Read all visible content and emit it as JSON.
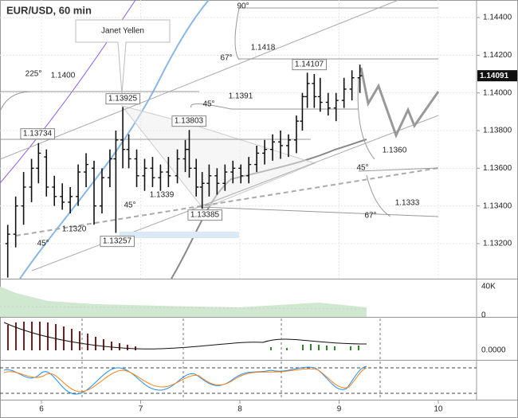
{
  "chart_data": {
    "type": "ohlc",
    "title": "EUR/USD, 60 min",
    "x": [
      5.66,
      5.74,
      5.82,
      5.9,
      5.97,
      6.05,
      6.13,
      6.21,
      6.29,
      6.37,
      6.45,
      6.53,
      6.61,
      6.69,
      6.75,
      6.82,
      6.88,
      6.96,
      7.04,
      7.12,
      7.2,
      7.28,
      7.37,
      7.45,
      7.49,
      7.56,
      7.62,
      7.69,
      7.77,
      7.85,
      7.93,
      8.01,
      8.09,
      8.17,
      8.25,
      8.33,
      8.41,
      8.49,
      8.57,
      8.63,
      8.68,
      8.75,
      8.81,
      8.89,
      8.97,
      9.05,
      9.13,
      9.21
    ],
    "open": [
      1.132,
      1.1325,
      1.134,
      1.135,
      1.136,
      1.1366,
      1.135,
      1.1345,
      1.1342,
      1.1345,
      1.1358,
      1.136,
      1.134,
      1.1355,
      1.1365,
      1.1375,
      1.137,
      1.1365,
      1.1356,
      1.136,
      1.1355,
      1.1358,
      1.1356,
      1.1365,
      1.137,
      1.136,
      1.135,
      1.1352,
      1.1356,
      1.1352,
      1.1358,
      1.136,
      1.1356,
      1.1362,
      1.1368,
      1.137,
      1.1374,
      1.1372,
      1.1375,
      1.1385,
      1.1398,
      1.1405,
      1.1398,
      1.1395,
      1.1392,
      1.1396,
      1.1402,
      1.1408
    ],
    "high": [
      1.133,
      1.1345,
      1.1358,
      1.1365,
      1.13734,
      1.137,
      1.1356,
      1.1352,
      1.135,
      1.1362,
      1.1368,
      1.1364,
      1.136,
      1.137,
      1.138,
      1.13925,
      1.1378,
      1.137,
      1.1365,
      1.1366,
      1.1362,
      1.1366,
      1.137,
      1.1375,
      1.13803,
      1.1365,
      1.1358,
      1.1362,
      1.136,
      1.1362,
      1.1364,
      1.1362,
      1.1366,
      1.1372,
      1.1375,
      1.1378,
      1.138,
      1.1378,
      1.1388,
      1.14,
      1.14107,
      1.141,
      1.1408,
      1.14,
      1.14,
      1.1408,
      1.1412,
      1.1415
    ],
    "low": [
      1.1302,
      1.1318,
      1.133,
      1.1342,
      1.1352,
      1.1345,
      1.134,
      1.1338,
      1.1336,
      1.134,
      1.135,
      1.133,
      1.1336,
      1.135,
      1.13257,
      1.136,
      1.136,
      1.135,
      1.1348,
      1.135,
      1.1348,
      1.135,
      1.1352,
      1.1358,
      1.1355,
      1.1345,
      1.13385,
      1.1345,
      1.1346,
      1.1348,
      1.1352,
      1.1352,
      1.1352,
      1.1358,
      1.1362,
      1.1364,
      1.1365,
      1.1366,
      1.1368,
      1.138,
      1.1392,
      1.1392,
      1.139,
      1.1388,
      1.1385,
      1.1392,
      1.1396,
      1.14
    ],
    "close": [
      1.1325,
      1.134,
      1.135,
      1.136,
      1.1368,
      1.135,
      1.1345,
      1.1342,
      1.1345,
      1.1358,
      1.1362,
      1.134,
      1.1355,
      1.1365,
      1.1375,
      1.137,
      1.1365,
      1.1356,
      1.136,
      1.1355,
      1.1358,
      1.1356,
      1.1365,
      1.137,
      1.136,
      1.135,
      1.1352,
      1.1356,
      1.1352,
      1.1358,
      1.136,
      1.1356,
      1.1362,
      1.1368,
      1.137,
      1.1374,
      1.1372,
      1.1375,
      1.1385,
      1.1398,
      1.1405,
      1.1398,
      1.1395,
      1.1392,
      1.1396,
      1.1402,
      1.1408,
      1.14091
    ],
    "color": "#111111",
    "xlim": [
      5.582,
      10.386
    ],
    "xticks": [
      6,
      7,
      8,
      9,
      10
    ],
    "ylim": [
      1.13014,
      1.14493
    ],
    "yticks": [
      {
        "value": 1.132,
        "label": "1.13200"
      },
      {
        "value": 1.134,
        "label": "1.13400"
      },
      {
        "value": 1.136,
        "label": "1.13600"
      },
      {
        "value": 1.138,
        "label": "1.13800"
      },
      {
        "value": 1.14,
        "label": "1.14000"
      },
      {
        "value": 1.142,
        "label": "1.14200"
      },
      {
        "value": 1.144,
        "label": "1.14400"
      }
    ],
    "grid": true,
    "current_price": 1.14091,
    "annotations": [
      "Janet Yellen",
      "1.13734",
      "1.13925",
      "1.13803",
      "1.14107",
      "1.13257",
      "1.13385",
      "225°",
      "1.1400",
      "90°",
      "1.1418",
      "67°",
      "45°",
      "1.1391",
      "1.1339",
      "45°",
      "1.1320",
      "45°",
      "1.1360",
      "45°",
      "1.1333",
      "67°"
    ],
    "volume_ticks": [
      "40K",
      "0"
    ],
    "oscillator_tick": "0.0000"
  }
}
